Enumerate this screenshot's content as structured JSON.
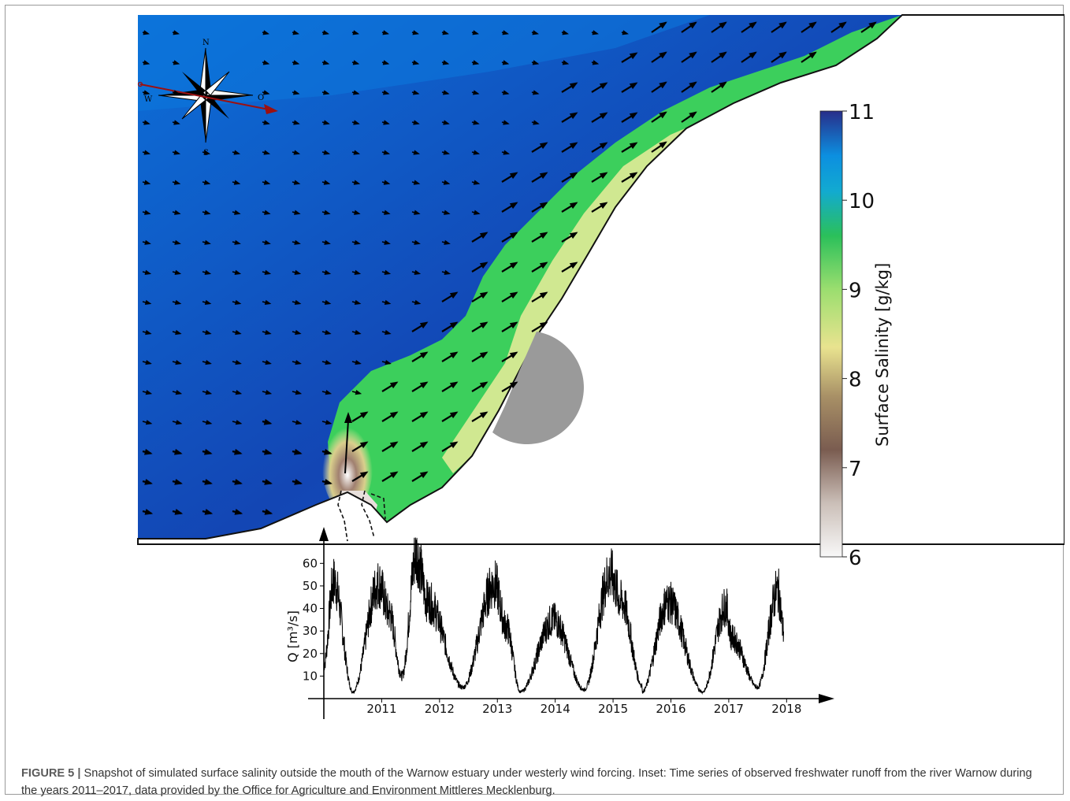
{
  "figure": {
    "caption_label": "FIGURE 5 |",
    "caption_text": " Snapshot of simulated surface salinity outside the mouth of the Warnow estuary under westerly wind forcing. Inset: Time series of observed freshwater runoff from the river Warnow during the years 2011–2017, data provided by the Office for Agriculture and Environment Mittleres Mecklenburg."
  },
  "compass": {
    "n": "N",
    "s": "S",
    "w": "W",
    "o": "O"
  },
  "colorbar": {
    "label": "Surface Salinity [g/kg]",
    "ticks": [
      "11",
      "10",
      "9",
      "8",
      "7",
      "6"
    ],
    "range": [
      6,
      11
    ],
    "colors": [
      "#f8f8f8",
      "#7a5c50",
      "#e9e38f",
      "#2bc05a",
      "#0c8fe0",
      "#282e8a"
    ]
  },
  "colors": {
    "sea": "#0f4fbf",
    "plume_green": "#3ccf5c",
    "plume_yellow": "#eaec9a",
    "land": "#ffffff",
    "gray_circle": "#9a9a9a",
    "wind_arrow": "#9c1010"
  },
  "chart_data": {
    "type": "line",
    "ylabel": "Q [m³/s]",
    "xlabel": "",
    "y_ticks": [
      "10",
      "20",
      "30",
      "40",
      "50",
      "60"
    ],
    "x_ticks": [
      "2011",
      "2012",
      "2013",
      "2014",
      "2015",
      "2016",
      "2017",
      "2018"
    ],
    "x_tick_values": [
      2011,
      2012,
      2013,
      2014,
      2015,
      2016,
      2017,
      2018
    ],
    "ylim": [
      0,
      65
    ],
    "xlim": [
      2010,
      2018.5
    ],
    "x_start": 2010.0,
    "x_end": 2017.95,
    "peaks": [
      [
        2010.17,
        52
      ],
      [
        2010.95,
        51
      ],
      [
        2011.13,
        38
      ],
      [
        2011.6,
        64
      ],
      [
        2011.8,
        43
      ],
      [
        2012.95,
        51
      ],
      [
        2013.15,
        32
      ],
      [
        2013.97,
        35
      ],
      [
        2014.95,
        55
      ],
      [
        2015.15,
        43
      ],
      [
        2015.5,
        6
      ],
      [
        2015.95,
        43
      ],
      [
        2016.95,
        41
      ],
      [
        2017.05,
        27
      ],
      [
        2017.85,
        48
      ]
    ],
    "troughs": [
      [
        2010.5,
        3
      ],
      [
        2011.35,
        10
      ],
      [
        2012.4,
        5
      ],
      [
        2013.4,
        3
      ],
      [
        2014.5,
        4
      ],
      [
        2015.5,
        3
      ],
      [
        2016.55,
        3
      ],
      [
        2017.5,
        5
      ]
    ]
  }
}
